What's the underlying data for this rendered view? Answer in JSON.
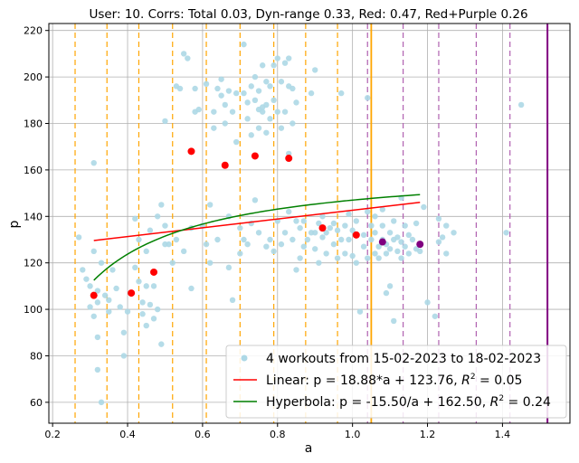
{
  "chart_data": {
    "type": "scatter",
    "title": "User: 10. Corrs: Total 0.03, Dyn-range 0.33, Red: 0.47, Red+Purple 0.26",
    "xlabel": "a",
    "ylabel": "p",
    "xlim": [
      0.19,
      1.58
    ],
    "ylim": [
      51,
      223
    ],
    "xticks": [
      0.2,
      0.4,
      0.6,
      0.8,
      1.0,
      1.2,
      1.4
    ],
    "xtick_labels": [
      "0.2",
      "0.4",
      "0.6",
      "0.8",
      "1.0",
      "1.2",
      "1.4"
    ],
    "yticks": [
      60,
      80,
      100,
      120,
      140,
      160,
      180,
      200,
      220
    ],
    "ytick_labels": [
      "60",
      "80",
      "100",
      "120",
      "140",
      "160",
      "180",
      "200",
      "220"
    ],
    "grid": true,
    "legend_position": "lower-right",
    "colors": {
      "scatter": "#add8e6",
      "red_points": "#ff0000",
      "purple_points": "#800080",
      "linear": "#ff0000",
      "hyperbola": "#008000",
      "orange_lines": "#ffa500",
      "purple_dashed": "#b060b0",
      "purple_solid": "#800080"
    },
    "series": [
      {
        "name": "4 workouts from 15-02-2023 to 18-02-2023",
        "kind": "scatter",
        "points": [
          [
            0.27,
            131
          ],
          [
            0.28,
            117
          ],
          [
            0.29,
            113
          ],
          [
            0.3,
            110
          ],
          [
            0.3,
            101
          ],
          [
            0.31,
            97
          ],
          [
            0.31,
            125
          ],
          [
            0.31,
            163
          ],
          [
            0.32,
            108
          ],
          [
            0.32,
            103
          ],
          [
            0.32,
            88
          ],
          [
            0.32,
            74
          ],
          [
            0.33,
            120
          ],
          [
            0.33,
            60
          ],
          [
            0.34,
            106
          ],
          [
            0.35,
            104
          ],
          [
            0.35,
            99
          ],
          [
            0.36,
            117
          ],
          [
            0.37,
            109
          ],
          [
            0.38,
            101
          ],
          [
            0.39,
            90
          ],
          [
            0.39,
            80
          ],
          [
            0.4,
            99
          ],
          [
            0.41,
            107
          ],
          [
            0.42,
            118
          ],
          [
            0.42,
            139
          ],
          [
            0.43,
            130
          ],
          [
            0.43,
            112
          ],
          [
            0.44,
            103
          ],
          [
            0.44,
            98
          ],
          [
            0.45,
            93
          ],
          [
            0.45,
            110
          ],
          [
            0.45,
            125
          ],
          [
            0.46,
            134
          ],
          [
            0.46,
            102
          ],
          [
            0.47,
            96
          ],
          [
            0.47,
            110
          ],
          [
            0.48,
            140
          ],
          [
            0.48,
            100
          ],
          [
            0.49,
            85
          ],
          [
            0.49,
            145
          ],
          [
            0.5,
            136
          ],
          [
            0.5,
            128
          ],
          [
            0.5,
            181
          ],
          [
            0.51,
            128
          ],
          [
            0.52,
            120
          ],
          [
            0.53,
            196
          ],
          [
            0.53,
            130
          ],
          [
            0.54,
            195
          ],
          [
            0.55,
            125
          ],
          [
            0.55,
            210
          ],
          [
            0.56,
            208
          ],
          [
            0.57,
            135
          ],
          [
            0.57,
            109
          ],
          [
            0.58,
            185
          ],
          [
            0.58,
            195
          ],
          [
            0.59,
            186
          ],
          [
            0.6,
            136
          ],
          [
            0.61,
            128
          ],
          [
            0.61,
            197
          ],
          [
            0.62,
            145
          ],
          [
            0.62,
            120
          ],
          [
            0.63,
            185
          ],
          [
            0.63,
            178
          ],
          [
            0.64,
            195
          ],
          [
            0.64,
            130
          ],
          [
            0.65,
            199
          ],
          [
            0.65,
            192
          ],
          [
            0.66,
            188
          ],
          [
            0.66,
            180
          ],
          [
            0.67,
            194
          ],
          [
            0.67,
            140
          ],
          [
            0.67,
            118
          ],
          [
            0.68,
            185
          ],
          [
            0.68,
            104
          ],
          [
            0.69,
            193
          ],
          [
            0.69,
            172
          ],
          [
            0.7,
            124
          ],
          [
            0.7,
            135
          ],
          [
            0.71,
            214
          ],
          [
            0.71,
            193
          ],
          [
            0.71,
            130
          ],
          [
            0.72,
            189
          ],
          [
            0.72,
            182
          ],
          [
            0.72,
            128
          ],
          [
            0.73,
            196
          ],
          [
            0.73,
            175
          ],
          [
            0.73,
            137
          ],
          [
            0.74,
            190
          ],
          [
            0.74,
            200
          ],
          [
            0.74,
            147
          ],
          [
            0.75,
            178
          ],
          [
            0.75,
            186
          ],
          [
            0.75,
            194
          ],
          [
            0.75,
            133
          ],
          [
            0.76,
            205
          ],
          [
            0.76,
            187
          ],
          [
            0.76,
            185
          ],
          [
            0.77,
            198
          ],
          [
            0.77,
            188
          ],
          [
            0.77,
            176
          ],
          [
            0.77,
            127
          ],
          [
            0.78,
            196
          ],
          [
            0.78,
            182
          ],
          [
            0.78,
            130
          ],
          [
            0.79,
            205
          ],
          [
            0.79,
            190
          ],
          [
            0.79,
            125
          ],
          [
            0.8,
            208
          ],
          [
            0.8,
            185
          ],
          [
            0.8,
            138
          ],
          [
            0.81,
            198
          ],
          [
            0.81,
            178
          ],
          [
            0.81,
            128
          ],
          [
            0.82,
            206
          ],
          [
            0.82,
            185
          ],
          [
            0.82,
            133
          ],
          [
            0.83,
            208
          ],
          [
            0.83,
            196
          ],
          [
            0.83,
            167
          ],
          [
            0.83,
            142
          ],
          [
            0.84,
            195
          ],
          [
            0.84,
            180
          ],
          [
            0.84,
            130
          ],
          [
            0.85,
            189
          ],
          [
            0.85,
            138
          ],
          [
            0.85,
            117
          ],
          [
            0.86,
            122
          ],
          [
            0.86,
            135
          ],
          [
            0.87,
            127
          ],
          [
            0.87,
            138
          ],
          [
            0.88,
            130
          ],
          [
            0.89,
            193
          ],
          [
            0.89,
            133
          ],
          [
            0.9,
            203
          ],
          [
            0.9,
            126
          ],
          [
            0.9,
            133
          ],
          [
            0.91,
            137
          ],
          [
            0.91,
            120
          ],
          [
            0.92,
            140
          ],
          [
            0.92,
            131
          ],
          [
            0.93,
            124
          ],
          [
            0.93,
            133
          ],
          [
            0.94,
            135
          ],
          [
            0.95,
            128
          ],
          [
            0.95,
            137
          ],
          [
            0.96,
            122
          ],
          [
            0.96,
            134
          ],
          [
            0.97,
            130
          ],
          [
            0.97,
            193
          ],
          [
            0.98,
            124
          ],
          [
            0.98,
            136
          ],
          [
            0.99,
            130
          ],
          [
            0.99,
            141
          ],
          [
            1.0,
            123
          ],
          [
            1.0,
            134
          ],
          [
            1.01,
            120
          ],
          [
            1.01,
            138
          ],
          [
            1.02,
            99
          ],
          [
            1.03,
            127
          ],
          [
            1.03,
            132
          ],
          [
            1.04,
            191
          ],
          [
            1.04,
            122
          ],
          [
            1.04,
            142
          ],
          [
            1.05,
            130
          ],
          [
            1.05,
            136
          ],
          [
            1.06,
            124
          ],
          [
            1.06,
            133
          ],
          [
            1.06,
            140
          ],
          [
            1.07,
            122
          ],
          [
            1.07,
            127
          ],
          [
            1.08,
            130
          ],
          [
            1.08,
            136
          ],
          [
            1.08,
            143
          ],
          [
            1.09,
            124
          ],
          [
            1.09,
            128
          ],
          [
            1.09,
            107
          ],
          [
            1.1,
            133
          ],
          [
            1.1,
            126
          ],
          [
            1.1,
            110
          ],
          [
            1.11,
            130
          ],
          [
            1.11,
            138
          ],
          [
            1.11,
            95
          ],
          [
            1.12,
            125
          ],
          [
            1.12,
            131
          ],
          [
            1.13,
            122
          ],
          [
            1.13,
            129
          ],
          [
            1.13,
            148
          ],
          [
            1.14,
            127
          ],
          [
            1.14,
            136
          ],
          [
            1.15,
            124
          ],
          [
            1.15,
            132
          ],
          [
            1.16,
            130
          ],
          [
            1.17,
            126
          ],
          [
            1.17,
            137
          ],
          [
            1.18,
            125
          ],
          [
            1.18,
            128
          ],
          [
            1.19,
            144
          ],
          [
            1.2,
            103
          ],
          [
            1.22,
            97
          ],
          [
            1.23,
            129
          ],
          [
            1.23,
            139
          ],
          [
            1.24,
            131
          ],
          [
            1.25,
            124
          ],
          [
            1.25,
            136
          ],
          [
            1.27,
            133
          ],
          [
            1.41,
            133
          ],
          [
            1.45,
            188
          ]
        ]
      },
      {
        "name": "",
        "kind": "scatter-red",
        "points": [
          [
            0.31,
            106
          ],
          [
            0.41,
            107
          ],
          [
            0.47,
            116
          ],
          [
            0.57,
            168
          ],
          [
            0.66,
            162
          ],
          [
            0.74,
            166
          ],
          [
            0.83,
            165
          ],
          [
            0.92,
            135
          ],
          [
            1.01,
            132
          ]
        ]
      },
      {
        "name": "",
        "kind": "scatter-purple",
        "points": [
          [
            1.08,
            129
          ],
          [
            1.18,
            128
          ]
        ]
      },
      {
        "name": "Linear: p = 18.88*a + 123.76, $R^2$ = 0.05",
        "kind": "line",
        "a": 18.88,
        "b": 123.76,
        "x_range": [
          0.31,
          1.18
        ]
      },
      {
        "name": "Hyperbola: p = -15.50/a + 162.50, $R^2$ = 0.24",
        "kind": "hyperbola",
        "a": -15.5,
        "b": 162.5,
        "x_range": [
          0.31,
          1.18
        ]
      }
    ],
    "legend": [
      {
        "label_prefix": "4 workouts from 15-02-2023 to 18-02-2023",
        "label_r2": "",
        "label_suffix": ""
      },
      {
        "label_prefix": "Linear: p = 18.88*a + 123.76, ",
        "label_r2": "R",
        "label_suffix": " = 0.05"
      },
      {
        "label_prefix": "Hyperbola: p = -15.50/a + 162.50, ",
        "label_r2": "R",
        "label_suffix": " = 0.24"
      }
    ],
    "vlines_orange": [
      0.26,
      0.345,
      0.43,
      0.52,
      0.61,
      0.7,
      0.79,
      0.875,
      0.96,
      1.05
    ],
    "vlines_purple_dashed": [
      1.04,
      1.135,
      1.23,
      1.33,
      1.42
    ],
    "vline_orange_solid": 1.05,
    "vline_purple_solid": 1.52
  }
}
